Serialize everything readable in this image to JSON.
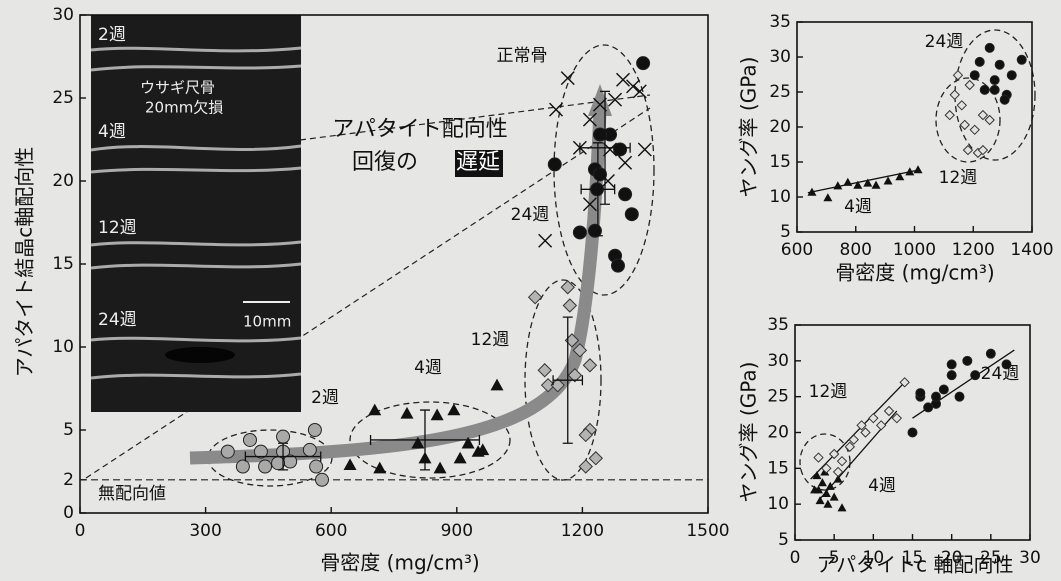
{
  "chart_data": [
    {
      "type": "scatter",
      "x_label": "骨密度 (mg/cm³)",
      "y_label": "アパタイト結晶c軸配向性",
      "xlim": [
        0,
        1500
      ],
      "ylim": [
        0,
        30
      ],
      "xticks": [
        0,
        300,
        600,
        900,
        1200,
        1500
      ],
      "yticks": [
        0,
        2,
        5,
        10,
        15,
        20,
        25,
        30
      ],
      "reference_line": {
        "value": 2,
        "label": "無配向値"
      },
      "annotations": [
        "アパタイト配向性",
        "回復の",
        "遅延"
      ],
      "inset_labels": [
        "2週",
        "4週",
        "12週",
        "24週",
        "ウサギ尺骨",
        "20mm欠損",
        "10mm"
      ],
      "series": [
        {
          "name": "2週",
          "marker": "circle",
          "color": "#a9a9a9",
          "x": [
            353,
            406,
            432,
            442,
            485,
            485,
            502,
            549,
            561,
            564,
            578,
            389,
            473
          ],
          "values": [
            3.7,
            4.4,
            3.7,
            2.8,
            4.6,
            3.7,
            3.1,
            3.8,
            5.0,
            2.8,
            2.0,
            2.8,
            3.0
          ],
          "error": {
            "mean_x": 485,
            "mean_y": 3.4,
            "xerr": 90,
            "yerr": 0.8
          }
        },
        {
          "name": "4週",
          "marker": "triangle",
          "color": "#111111",
          "x": [
            645,
            704,
            716,
            781,
            807,
            824,
            853,
            860,
            893,
            908,
            927,
            951,
            996,
            962
          ],
          "values": [
            2.9,
            6.2,
            2.7,
            6.0,
            4.2,
            3.3,
            5.9,
            2.7,
            6.2,
            3.3,
            4.2,
            3.7,
            7.7,
            3.8
          ],
          "error": {
            "mean_x": 824,
            "mean_y": 4.4,
            "xerr": 130,
            "yerr": 1.8
          }
        },
        {
          "name": "12週",
          "marker": "diamond",
          "color": "#b4b4b4",
          "x": [
            1087,
            1165,
            1175,
            1110,
            1118,
            1141,
            1218,
            1218,
            1208,
            1232,
            1208,
            1170,
            1194,
            1182
          ],
          "values": [
            13.0,
            13.6,
            10.4,
            8.6,
            7.7,
            7.7,
            8.9,
            5.0,
            4.7,
            3.3,
            2.8,
            12.5,
            9.8,
            8.3
          ],
          "error": {
            "mean_x": 1165,
            "mean_y": 8.0,
            "xerr": 35,
            "yerr": 3.8
          }
        },
        {
          "name": "24週",
          "marker": "circle",
          "color": "#111111",
          "x": [
            1134,
            1194,
            1235,
            1230,
            1242,
            1230,
            1266,
            1290,
            1302,
            1318,
            1278,
            1285,
            1345,
            1242
          ],
          "values": [
            21.0,
            16.9,
            19.5,
            20.7,
            20.4,
            17.0,
            22.8,
            21.9,
            19.2,
            18.0,
            15.5,
            14.9,
            27.1,
            22.8
          ],
          "error": {
            "mean_x": 1237,
            "mean_y": 19.5,
            "xerr": 40,
            "yerr": 2.8
          }
        },
        {
          "name": "正常骨",
          "marker": "cross",
          "color": "#111111",
          "x": [
            1111,
            1137,
            1165,
            1194,
            1218,
            1242,
            1278,
            1297,
            1321,
            1337,
            1349,
            1266,
            1302,
            1218,
            1261
          ],
          "values": [
            16.4,
            24.3,
            26.2,
            22.0,
            23.7,
            24.6,
            24.9,
            26.1,
            25.7,
            25.4,
            21.9,
            21.9,
            21.1,
            18.6,
            20.0
          ],
          "error": {
            "mean_x": 1254,
            "mean_y": 22.0,
            "xerr": 60,
            "yerr": 3.4
          }
        }
      ]
    },
    {
      "type": "scatter",
      "x_label": "骨密度 (mg/cm³)",
      "y_label": "ヤング率 (GPa)",
      "xlim": [
        600,
        1400
      ],
      "ylim": [
        5,
        35
      ],
      "xticks": [
        600,
        800,
        1000,
        1200,
        1400
      ],
      "yticks": [
        5,
        10,
        15,
        20,
        25,
        30,
        35
      ],
      "series": [
        {
          "name": "4週",
          "marker": "triangle",
          "color": "#111111",
          "x": [
            651,
            705,
            739,
            773,
            807,
            841,
            869,
            910,
            950,
            984,
            1012
          ],
          "values": [
            10.7,
            9.9,
            11.6,
            12.1,
            11.7,
            12.0,
            11.7,
            12.3,
            12.9,
            13.6,
            13.9
          ],
          "fit": [
            [
              637,
              10.6
            ],
            [
              1018,
              13.9
            ]
          ]
        },
        {
          "name": "12週",
          "marker": "diamond",
          "color": "#e2e2e2",
          "x": [
            1137,
            1161,
            1120,
            1171,
            1205,
            1233,
            1256,
            1182,
            1216,
            1233,
            1188,
            1148
          ],
          "values": [
            24.6,
            23.1,
            21.7,
            20.3,
            19.6,
            21.7,
            21.0,
            16.7,
            16.3,
            16.7,
            26.0,
            27.4
          ]
        },
        {
          "name": "24週",
          "marker": "circle",
          "color": "#111111",
          "x": [
            1256,
            1290,
            1331,
            1273,
            1205,
            1239,
            1273,
            1314,
            1365,
            1307,
            1222
          ],
          "values": [
            31.3,
            28.9,
            27.4,
            26.7,
            27.4,
            25.3,
            25.3,
            24.6,
            29.6,
            23.9,
            29.3
          ]
        }
      ]
    },
    {
      "type": "scatter",
      "x_label": "アパタイトc 軸配向性",
      "y_label": "ヤング率 (GPa)",
      "xlim": [
        0,
        30
      ],
      "ylim": [
        5,
        35
      ],
      "xticks": [
        0,
        5,
        10,
        15,
        20,
        25,
        30
      ],
      "yticks": [
        5,
        10,
        15,
        20,
        25,
        30,
        35
      ],
      "series": [
        {
          "name": "4週",
          "marker": "triangle",
          "color": "#111111",
          "x": [
            3,
            3.5,
            4,
            2.8,
            4.5,
            5,
            3.2,
            4.2,
            6,
            5.5,
            3.8,
            2.5
          ],
          "values": [
            12,
            13,
            11.5,
            14,
            12.5,
            11,
            10.5,
            10,
            9.5,
            13.5,
            14.5,
            12
          ],
          "fit": [
            [
              3,
              10.5
            ],
            [
              13,
              23
            ]
          ]
        },
        {
          "name": "12週",
          "marker": "diamond",
          "color": "#e2e2e2",
          "x": [
            3,
            4,
            5,
            6,
            7,
            9,
            10,
            11,
            12,
            13,
            14,
            7.5,
            8.5,
            5.5
          ],
          "values": [
            16.5,
            15,
            17,
            16,
            18,
            20,
            22,
            21,
            23,
            22,
            27,
            19,
            21,
            14.5
          ],
          "fit": [
            [
              2,
              13.5
            ],
            [
              14,
              27
            ]
          ]
        },
        {
          "name": "24週",
          "marker": "circle",
          "color": "#111111",
          "x": [
            15,
            16,
            16,
            17,
            18,
            19,
            20,
            20,
            21,
            22,
            23,
            25,
            27,
            18
          ],
          "values": [
            20,
            25,
            25.5,
            23.5,
            24,
            26,
            28,
            29.5,
            25,
            30,
            28,
            31,
            29.5,
            25
          ],
          "fit": [
            [
              15,
              22
            ],
            [
              28,
              31.5
            ]
          ]
        }
      ]
    }
  ]
}
